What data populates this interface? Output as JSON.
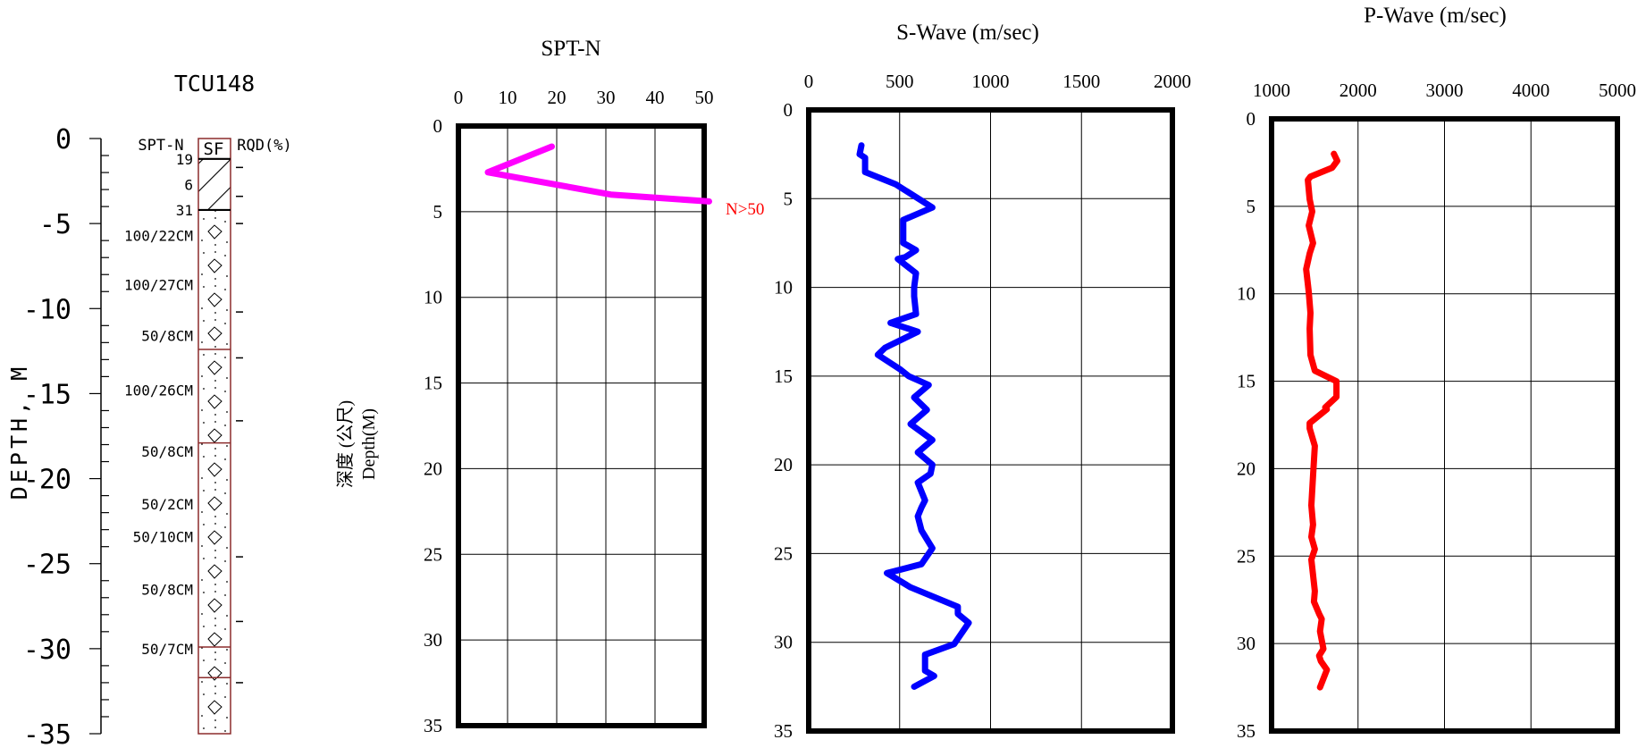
{
  "borehole_log": {
    "title": "TCU148",
    "y_axis_label": "DEPTH, M",
    "depth_ticks": [
      "0",
      "-5",
      "-10",
      "-15",
      "-20",
      "-25",
      "-30",
      "-35"
    ],
    "column_headers": {
      "spt": "SPT-N",
      "rqd": "RQD(%)"
    },
    "layers": [
      {
        "label": "SF",
        "top": 0,
        "bottom": 1.2,
        "pattern": "fill"
      },
      {
        "label": "",
        "top": 1.2,
        "bottom": 4.2,
        "pattern": "hatch"
      },
      {
        "label": "",
        "top": 4.2,
        "bottom": 35,
        "pattern": "gravel"
      }
    ],
    "spt_labels": [
      {
        "text": "19",
        "depth": 1.2
      },
      {
        "text": "6",
        "depth": 2.7
      },
      {
        "text": "31",
        "depth": 4.2
      },
      {
        "text": "100/22CM",
        "depth": 5.7
      },
      {
        "text": "100/27CM",
        "depth": 8.6
      },
      {
        "text": "50/8CM",
        "depth": 11.6
      },
      {
        "text": "100/26CM",
        "depth": 14.8
      },
      {
        "text": "50/8CM",
        "depth": 18.4
      },
      {
        "text": "50/2CM",
        "depth": 21.5
      },
      {
        "text": "50/10CM",
        "depth": 23.4
      },
      {
        "text": "50/8CM",
        "depth": 26.5
      },
      {
        "text": "50/7CM",
        "depth": 30.0
      }
    ],
    "core_run_boundaries": [
      1.2,
      4.2,
      12.4,
      17.9,
      29.9,
      31.7
    ],
    "rqd_marks": [
      1.7,
      3.4,
      5.0,
      10.2,
      12.9,
      16.6,
      24.6,
      28.4,
      32.0
    ]
  },
  "shared_y_label": {
    "zh": "深度 (公尺)",
    "en": "Depth(M)"
  },
  "chart_data": [
    {
      "type": "line",
      "title": "SPT-N",
      "xlim": [
        0,
        50
      ],
      "x_ticks": [
        0,
        10,
        20,
        30,
        40,
        50
      ],
      "ylim": [
        0,
        35
      ],
      "y_ticks": [
        0,
        5,
        10,
        15,
        20,
        25,
        30,
        35
      ],
      "grid": true,
      "color": "#ff00ff",
      "series": [
        {
          "x": [
            19,
            6,
            31,
            51
          ],
          "y": [
            1.2,
            2.7,
            4.0,
            4.4
          ]
        }
      ],
      "annotation": {
        "text": "N>50",
        "color": "#ff0000"
      }
    },
    {
      "type": "line",
      "title": "S-Wave (m/sec)",
      "xlim": [
        0,
        2000
      ],
      "x_ticks": [
        0,
        500,
        1000,
        1500,
        2000
      ],
      "ylim": [
        0,
        35
      ],
      "y_ticks": [
        0,
        5,
        10,
        15,
        20,
        25,
        30,
        35
      ],
      "grid": true,
      "color": "#0000ff",
      "series": [
        {
          "x": [
            290,
            280,
            310,
            310,
            480,
            680,
            520,
            520,
            590,
            530,
            490,
            590,
            580,
            580,
            590,
            450,
            600,
            420,
            380,
            500,
            550,
            660,
            580,
            650,
            560,
            680,
            600,
            680,
            670,
            600,
            640,
            620,
            600,
            620,
            680,
            620,
            430,
            560,
            820,
            820,
            880,
            800,
            640,
            640,
            690,
            580
          ],
          "y": [
            2.0,
            2.5,
            2.7,
            3.5,
            4.2,
            5.5,
            6.2,
            7.5,
            7.9,
            8.3,
            8.4,
            9.2,
            10.0,
            10.5,
            11.5,
            12.0,
            12.5,
            13.4,
            13.8,
            14.6,
            15.0,
            15.5,
            16.2,
            16.9,
            17.7,
            18.6,
            19.3,
            20.0,
            20.5,
            21.0,
            22.0,
            22.4,
            22.9,
            23.7,
            24.7,
            25.6,
            26.1,
            26.9,
            28.0,
            28.4,
            28.9,
            30.1,
            30.7,
            31.6,
            31.9,
            32.5
          ]
        }
      ]
    },
    {
      "type": "line",
      "title": "P-Wave (m/sec)",
      "xlim": [
        1000,
        5000
      ],
      "x_ticks": [
        1000,
        2000,
        3000,
        4000,
        5000
      ],
      "ylim": [
        0,
        35
      ],
      "y_ticks": [
        0,
        5,
        10,
        15,
        20,
        25,
        30,
        35
      ],
      "grid": true,
      "color": "#ff0000",
      "series": [
        {
          "x": [
            1720,
            1760,
            1700,
            1450,
            1420,
            1440,
            1470,
            1430,
            1480,
            1440,
            1400,
            1430,
            1450,
            1440,
            1450,
            1500,
            1750,
            1750,
            1620,
            1640,
            1440,
            1440,
            1500,
            1480,
            1460,
            1480,
            1460,
            1500,
            1460,
            1500,
            1490,
            1550,
            1580,
            1560,
            1600,
            1550,
            1570,
            1640,
            1560
          ],
          "y": [
            2.0,
            2.4,
            2.8,
            3.3,
            3.5,
            4.6,
            5.3,
            6.1,
            7.1,
            7.7,
            8.6,
            9.9,
            11.1,
            12.0,
            13.5,
            14.4,
            15.0,
            15.9,
            16.5,
            16.6,
            17.4,
            17.7,
            18.7,
            20.4,
            22.1,
            23.2,
            23.9,
            24.6,
            25.2,
            27.0,
            27.6,
            28.3,
            28.6,
            29.3,
            30.3,
            30.7,
            31.0,
            31.5,
            32.5
          ]
        }
      ]
    }
  ]
}
